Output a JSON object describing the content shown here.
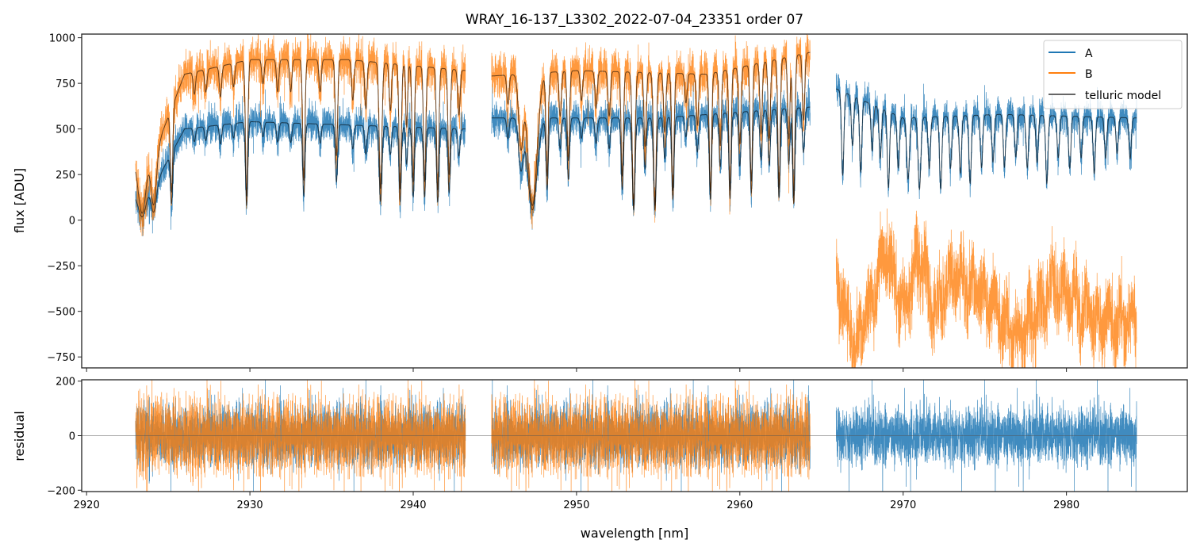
{
  "chart_data": [
    {
      "type": "line",
      "title": "WRAY_16-137_L3302_2022-07-04_23351  order 07",
      "xlabel": "",
      "ylabel": "flux [ADU]",
      "xlim": [
        2919.7,
        2987.4
      ],
      "ylim": [
        -810,
        1020
      ],
      "yticks": [
        -750,
        -500,
        -250,
        0,
        250,
        500,
        750,
        1000
      ],
      "xticks": [
        2920,
        2930,
        2940,
        2950,
        2960,
        2970,
        2980
      ],
      "legend": {
        "placement": "top-right",
        "entries": [
          "A",
          "B",
          "telluric model"
        ]
      },
      "colors": {
        "A": "#1f77b4",
        "B": "#ff7f0e",
        "telluric model": "#000000"
      },
      "segments": [
        [
          2923.0,
          2943.2
        ],
        [
          2944.8,
          2964.3
        ],
        [
          2965.9,
          2984.3
        ]
      ],
      "series": [
        {
          "name": "A",
          "continuum": [
            [
              2923.0,
              150
            ],
            [
              2924.5,
              250
            ],
            [
              2926.0,
              500
            ],
            [
              2930,
              540
            ],
            [
              2943.2,
              500
            ],
            [
              2944.8,
              560
            ],
            [
              2955,
              560
            ],
            [
              2964.3,
              620
            ],
            [
              2965.9,
              720
            ],
            [
              2970,
              560
            ],
            [
              2976,
              580
            ],
            [
              2984.3,
              560
            ]
          ]
        },
        {
          "name": "B",
          "continuum": [
            [
              2923.0,
              350
            ],
            [
              2924.5,
              450
            ],
            [
              2926.0,
              800
            ],
            [
              2930,
              880
            ],
            [
              2936,
              880
            ],
            [
              2943.2,
              820
            ],
            [
              2944.8,
              790
            ],
            [
              2950,
              820
            ],
            [
              2958,
              800
            ],
            [
              2964.3,
              920
            ]
          ],
          "unmodelled_segment": [
            [
              2965.9,
              -300
            ],
            [
              2967,
              -700
            ],
            [
              2968,
              -450
            ],
            [
              2969,
              -150
            ],
            [
              2970,
              -500
            ],
            [
              2971,
              -200
            ],
            [
              2972,
              -500
            ],
            [
              2973,
              -300
            ],
            [
              2975,
              -400
            ],
            [
              2977,
              -650
            ],
            [
              2978,
              -550
            ],
            [
              2979,
              -350
            ],
            [
              2980,
              -400
            ],
            [
              2982,
              -550
            ],
            [
              2984.3,
              -550
            ]
          ]
        },
        {
          "name": "telluric model",
          "lines": [
            [
              2923.4,
              0.9,
              0.35
            ],
            [
              2924.1,
              0.8,
              0.25
            ],
            [
              2925.2,
              0.75,
              0.1
            ],
            [
              2926.6,
              0.15,
              0.1
            ],
            [
              2927.3,
              0.15,
              0.1
            ],
            [
              2928.2,
              0.2,
              0.1
            ],
            [
              2929.0,
              0.15,
              0.1
            ],
            [
              2929.8,
              0.85,
              0.1
            ],
            [
              2930.8,
              0.15,
              0.1
            ],
            [
              2931.7,
              0.2,
              0.1
            ],
            [
              2932.5,
              0.2,
              0.1
            ],
            [
              2933.3,
              0.75,
              0.1
            ],
            [
              2934.3,
              0.2,
              0.1
            ],
            [
              2935.3,
              0.6,
              0.1
            ],
            [
              2936.3,
              0.25,
              0.1
            ],
            [
              2937.1,
              0.3,
              0.1
            ],
            [
              2938.0,
              0.8,
              0.12
            ],
            [
              2938.6,
              0.3,
              0.1
            ],
            [
              2939.2,
              0.8,
              0.1
            ],
            [
              2939.6,
              0.4,
              0.08
            ],
            [
              2940.0,
              0.75,
              0.1
            ],
            [
              2940.7,
              0.75,
              0.1
            ],
            [
              2941.5,
              0.8,
              0.1
            ],
            [
              2942.2,
              0.7,
              0.1
            ],
            [
              2942.8,
              0.3,
              0.1
            ],
            [
              2945.8,
              0.2,
              0.1
            ],
            [
              2946.6,
              0.5,
              0.2
            ],
            [
              2947.3,
              0.9,
              0.4
            ],
            [
              2948.2,
              0.7,
              0.1
            ],
            [
              2949.0,
              0.3,
              0.1
            ],
            [
              2949.5,
              0.6,
              0.1
            ],
            [
              2950.3,
              0.2,
              0.1
            ],
            [
              2951.2,
              0.25,
              0.1
            ],
            [
              2952.0,
              0.3,
              0.1
            ],
            [
              2952.8,
              0.7,
              0.1
            ],
            [
              2953.5,
              0.9,
              0.12
            ],
            [
              2954.2,
              0.5,
              0.1
            ],
            [
              2954.8,
              0.9,
              0.12
            ],
            [
              2955.4,
              0.4,
              0.1
            ],
            [
              2955.9,
              0.8,
              0.1
            ],
            [
              2956.7,
              0.2,
              0.1
            ],
            [
              2957.4,
              0.35,
              0.1
            ],
            [
              2958.2,
              0.8,
              0.1
            ],
            [
              2958.8,
              0.5,
              0.1
            ],
            [
              2959.4,
              0.8,
              0.1
            ],
            [
              2960.0,
              0.5,
              0.1
            ],
            [
              2960.7,
              0.75,
              0.1
            ],
            [
              2961.3,
              0.45,
              0.1
            ],
            [
              2961.8,
              0.5,
              0.1
            ],
            [
              2962.4,
              0.8,
              0.1
            ],
            [
              2963.0,
              0.5,
              0.1
            ],
            [
              2963.3,
              0.85,
              0.1
            ],
            [
              2963.9,
              0.4,
              0.1
            ],
            [
              2966.3,
              0.65,
              0.1
            ],
            [
              2966.9,
              0.4,
              0.1
            ],
            [
              2967.4,
              0.6,
              0.1
            ],
            [
              2968.1,
              0.4,
              0.1
            ],
            [
              2968.6,
              0.45,
              0.1
            ],
            [
              2969.1,
              0.7,
              0.1
            ],
            [
              2969.7,
              0.5,
              0.1
            ],
            [
              2970.3,
              0.6,
              0.12
            ],
            [
              2971.0,
              0.7,
              0.12
            ],
            [
              2971.6,
              0.5,
              0.1
            ],
            [
              2972.3,
              0.7,
              0.1
            ],
            [
              2972.9,
              0.5,
              0.1
            ],
            [
              2973.5,
              0.55,
              0.1
            ],
            [
              2974.1,
              0.65,
              0.1
            ],
            [
              2974.8,
              0.5,
              0.1
            ],
            [
              2975.5,
              0.45,
              0.1
            ],
            [
              2976.2,
              0.5,
              0.1
            ],
            [
              2976.9,
              0.4,
              0.1
            ],
            [
              2977.6,
              0.5,
              0.1
            ],
            [
              2978.2,
              0.45,
              0.1
            ],
            [
              2978.8,
              0.65,
              0.1
            ],
            [
              2979.5,
              0.4,
              0.1
            ],
            [
              2980.2,
              0.5,
              0.1
            ],
            [
              2980.9,
              0.4,
              0.1
            ],
            [
              2981.7,
              0.55,
              0.1
            ],
            [
              2982.4,
              0.4,
              0.1
            ],
            [
              2983.1,
              0.35,
              0.1
            ],
            [
              2983.9,
              0.4,
              0.1
            ]
          ]
        }
      ]
    },
    {
      "type": "line",
      "ylabel": "residual",
      "xlabel": "wavelength [nm]",
      "xlim": [
        2919.7,
        2987.4
      ],
      "ylim": [
        -205,
        205
      ],
      "yticks": [
        -200,
        0,
        200
      ],
      "xticks": [
        2920,
        2930,
        2940,
        2950,
        2960,
        2970,
        2980
      ],
      "xtick_labels": [
        "2920",
        "2930",
        "2940",
        "2950",
        "2960",
        "2970",
        "2980"
      ],
      "series": [
        {
          "name": "A",
          "segments": [
            [
              2923.0,
              2943.2
            ],
            [
              2944.8,
              2964.3
            ],
            [
              2965.9,
              2984.3
            ]
          ]
        },
        {
          "name": "B",
          "segments": [
            [
              2923.0,
              2943.2
            ],
            [
              2944.8,
              2964.3
            ]
          ]
        }
      ]
    }
  ]
}
